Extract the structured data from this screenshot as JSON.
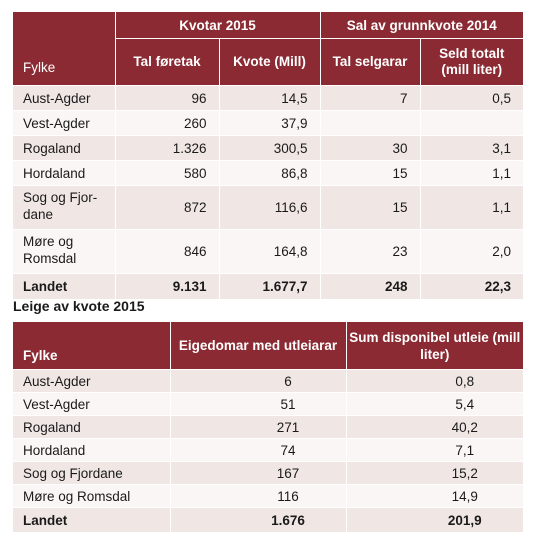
{
  "table1": {
    "group_kvotar": "Kvotar 2015",
    "group_sal": "Sal av grunnkvote 2014",
    "col_fylke": "Fylke",
    "col_tal_foretak": "Tal føretak",
    "col_kvote": "Kvote (Mill)",
    "col_tal_selgarar": "Tal selgarar",
    "col_seld_totalt": "Seld totalt (mill liter)",
    "rows": [
      {
        "fylke": "Aust-Agder",
        "foretak": "96",
        "kvote": "14,5",
        "selgarar": "7",
        "seld": "0,5"
      },
      {
        "fylke": "Vest-Agder",
        "foretak": "260",
        "kvote": "37,9",
        "selgarar": "",
        "seld": ""
      },
      {
        "fylke": "Rogaland",
        "foretak": "1.326",
        "kvote": "300,5",
        "selgarar": "30",
        "seld": "3,1"
      },
      {
        "fylke": "Hordaland",
        "foretak": "580",
        "kvote": "86,8",
        "selgarar": "15",
        "seld": "1,1"
      },
      {
        "fylke": "Sog og Fjor-dane",
        "foretak": "872",
        "kvote": "116,6",
        "selgarar": "15",
        "seld": "1,1"
      },
      {
        "fylke": "Møre og Romsdal",
        "foretak": "846",
        "kvote": "164,8",
        "selgarar": "23",
        "seld": "2,0"
      }
    ],
    "total": {
      "fylke": "Landet",
      "foretak": "9.131",
      "kvote": "1.677,7",
      "selgarar": "248",
      "seld": "22,3"
    }
  },
  "table2": {
    "title": "Leige av kvote 2015",
    "col_fylke": "Fylke",
    "col_eigedomar": "Eigedomar med utleiarar",
    "col_sum": "Sum disponibel utleie (mill liter)",
    "rows": [
      {
        "fylke": "Aust-Agder",
        "eigedomar": "6",
        "sum": "0,8"
      },
      {
        "fylke": "Vest-Agder",
        "eigedomar": "51",
        "sum": "5,4"
      },
      {
        "fylke": "Rogaland",
        "eigedomar": "271",
        "sum": "40,2"
      },
      {
        "fylke": "Hordaland",
        "eigedomar": "74",
        "sum": "7,1"
      },
      {
        "fylke": "Sog og Fjordane",
        "eigedomar": "167",
        "sum": "15,2"
      },
      {
        "fylke": "Møre og Romsdal",
        "eigedomar": "116",
        "sum": "14,9"
      }
    ],
    "total": {
      "fylke": "Landet",
      "eigedomar": "1.676",
      "sum": "201,9"
    }
  },
  "colors": {
    "header": "#8b2a32",
    "row_odd": "#f0e7e5",
    "row_even": "#faf6f5"
  }
}
